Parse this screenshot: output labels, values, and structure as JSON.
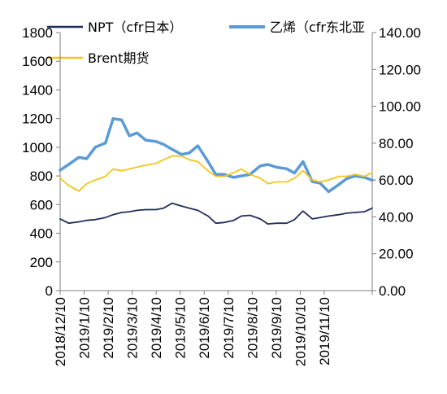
{
  "chart_data": {
    "type": "line",
    "x_ticks": [
      "2018/12/10",
      "2019/1/10",
      "2019/2/10",
      "2019/3/10",
      "2019/4/10",
      "2019/5/10",
      "2019/6/10",
      "2019/7/10",
      "2019/8/10",
      "2019/9/10",
      "2019/10/10",
      "2019/11/10"
    ],
    "y_left": {
      "range": [
        0,
        1800
      ],
      "ticks": [
        "0",
        "200",
        "400",
        "600",
        "800",
        "1000",
        "1200",
        "1400",
        "1600",
        "1800"
      ]
    },
    "y_right": {
      "range": [
        0,
        140
      ],
      "ticks": [
        "0.00",
        "20.00",
        "40.00",
        "60.00",
        "80.00",
        "100.00",
        "120.00",
        "140.00"
      ]
    },
    "x_range": [
      "2018-12-10",
      "2019-12-10"
    ],
    "grid": false,
    "legend_position": "top",
    "legend": [
      "NPT（cfr日本）",
      "乙烯（cfr东北亚",
      "Brent期货"
    ],
    "colors": {
      "npt": "#1f2d5c",
      "ethylene": "#5b9bd5",
      "brent": "#f5c518"
    },
    "series": [
      {
        "name": "NPT（cfr日本）",
        "axis": "left",
        "x": [
          "2018-12-10",
          "2018-12-20",
          "2019-01-01",
          "2019-01-10",
          "2019-01-20",
          "2019-02-01",
          "2019-02-10",
          "2019-02-20",
          "2019-03-01",
          "2019-03-10",
          "2019-03-20",
          "2019-04-01",
          "2019-04-10",
          "2019-04-20",
          "2019-05-01",
          "2019-05-10",
          "2019-05-20",
          "2019-06-01",
          "2019-06-10",
          "2019-06-20",
          "2019-07-01",
          "2019-07-10",
          "2019-07-20",
          "2019-08-01",
          "2019-08-10",
          "2019-08-20",
          "2019-09-01",
          "2019-09-10",
          "2019-09-20",
          "2019-10-01",
          "2019-10-10",
          "2019-10-20",
          "2019-11-01",
          "2019-11-10",
          "2019-11-20",
          "2019-12-01",
          "2019-12-10"
        ],
        "values": [
          500,
          470,
          480,
          490,
          495,
          510,
          530,
          545,
          550,
          560,
          565,
          565,
          575,
          610,
          590,
          575,
          560,
          520,
          470,
          475,
          490,
          520,
          525,
          500,
          465,
          470,
          470,
          495,
          555,
          500,
          510,
          520,
          530,
          540,
          545,
          550,
          575
        ]
      },
      {
        "name": "乙烯（cfr东北亚",
        "axis": "left",
        "x": [
          "2018-12-10",
          "2018-12-20",
          "2019-01-01",
          "2019-01-10",
          "2019-01-20",
          "2019-02-01",
          "2019-02-10",
          "2019-02-20",
          "2019-03-01",
          "2019-03-10",
          "2019-03-20",
          "2019-04-01",
          "2019-04-10",
          "2019-04-20",
          "2019-05-01",
          "2019-05-10",
          "2019-05-20",
          "2019-06-01",
          "2019-06-10",
          "2019-06-20",
          "2019-07-01",
          "2019-07-10",
          "2019-07-20",
          "2019-08-01",
          "2019-08-10",
          "2019-08-20",
          "2019-09-01",
          "2019-09-10",
          "2019-09-20",
          "2019-10-01",
          "2019-10-10",
          "2019-10-20",
          "2019-11-01",
          "2019-11-10",
          "2019-11-20",
          "2019-12-01",
          "2019-12-10"
        ],
        "values": [
          840,
          880,
          930,
          920,
          1000,
          1030,
          1200,
          1190,
          1080,
          1100,
          1050,
          1040,
          1020,
          985,
          950,
          960,
          1010,
          900,
          810,
          810,
          790,
          800,
          810,
          870,
          880,
          860,
          850,
          820,
          900,
          760,
          750,
          690,
          740,
          780,
          800,
          790,
          770
        ]
      },
      {
        "name": "Brent期货",
        "axis": "right",
        "x": [
          "2018-12-10",
          "2018-12-20",
          "2019-01-01",
          "2019-01-10",
          "2019-01-20",
          "2019-02-01",
          "2019-02-10",
          "2019-02-20",
          "2019-03-01",
          "2019-03-10",
          "2019-03-20",
          "2019-04-01",
          "2019-04-10",
          "2019-04-20",
          "2019-05-01",
          "2019-05-10",
          "2019-05-20",
          "2019-06-01",
          "2019-06-10",
          "2019-06-20",
          "2019-07-01",
          "2019-07-10",
          "2019-07-20",
          "2019-08-01",
          "2019-08-10",
          "2019-08-20",
          "2019-09-01",
          "2019-09-10",
          "2019-09-20",
          "2019-10-01",
          "2019-10-10",
          "2019-10-20",
          "2019-11-01",
          "2019-11-10",
          "2019-11-20",
          "2019-12-01",
          "2019-12-10"
        ],
        "values": [
          61,
          57,
          54,
          58,
          60,
          62,
          66,
          65,
          66,
          67,
          68,
          69,
          71,
          73,
          73,
          71,
          70,
          65,
          62,
          62,
          64,
          66,
          63,
          61,
          58,
          59,
          59,
          61,
          65,
          60,
          59,
          60,
          62,
          62,
          63,
          62,
          64
        ]
      }
    ]
  }
}
